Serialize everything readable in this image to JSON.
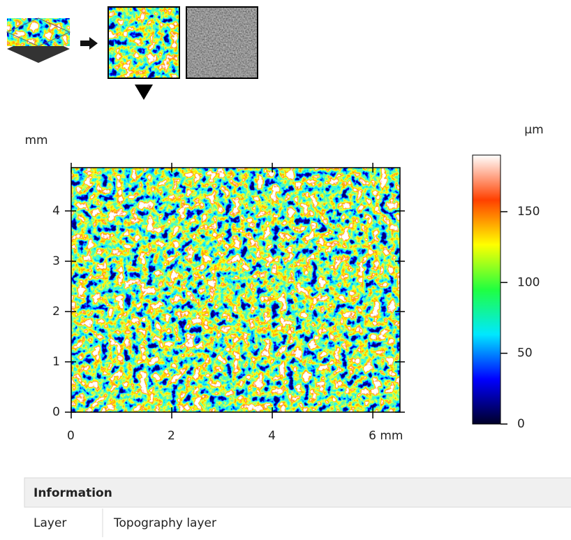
{
  "chart_data": {
    "type": "heatmap",
    "y_unit": "mm",
    "colorbar_unit": "µm",
    "xlim": [
      0,
      6.54
    ],
    "xticks": [
      0,
      2,
      4,
      {
        "value": 6,
        "label": "6 mm"
      }
    ],
    "ylim": [
      0,
      4.86
    ],
    "yticks": [
      0,
      1,
      2,
      3,
      4
    ],
    "clim": [
      0,
      190
    ],
    "cticks": [
      0,
      50,
      100,
      150
    ],
    "colormap": [
      "#000028",
      "#0000ff",
      "#00e8ff",
      "#20ff40",
      "#ffff00",
      "#ff4000",
      "#ffffff"
    ]
  },
  "information": {
    "title": "Information",
    "rows": [
      [
        "Layer",
        "Topography layer"
      ]
    ]
  }
}
